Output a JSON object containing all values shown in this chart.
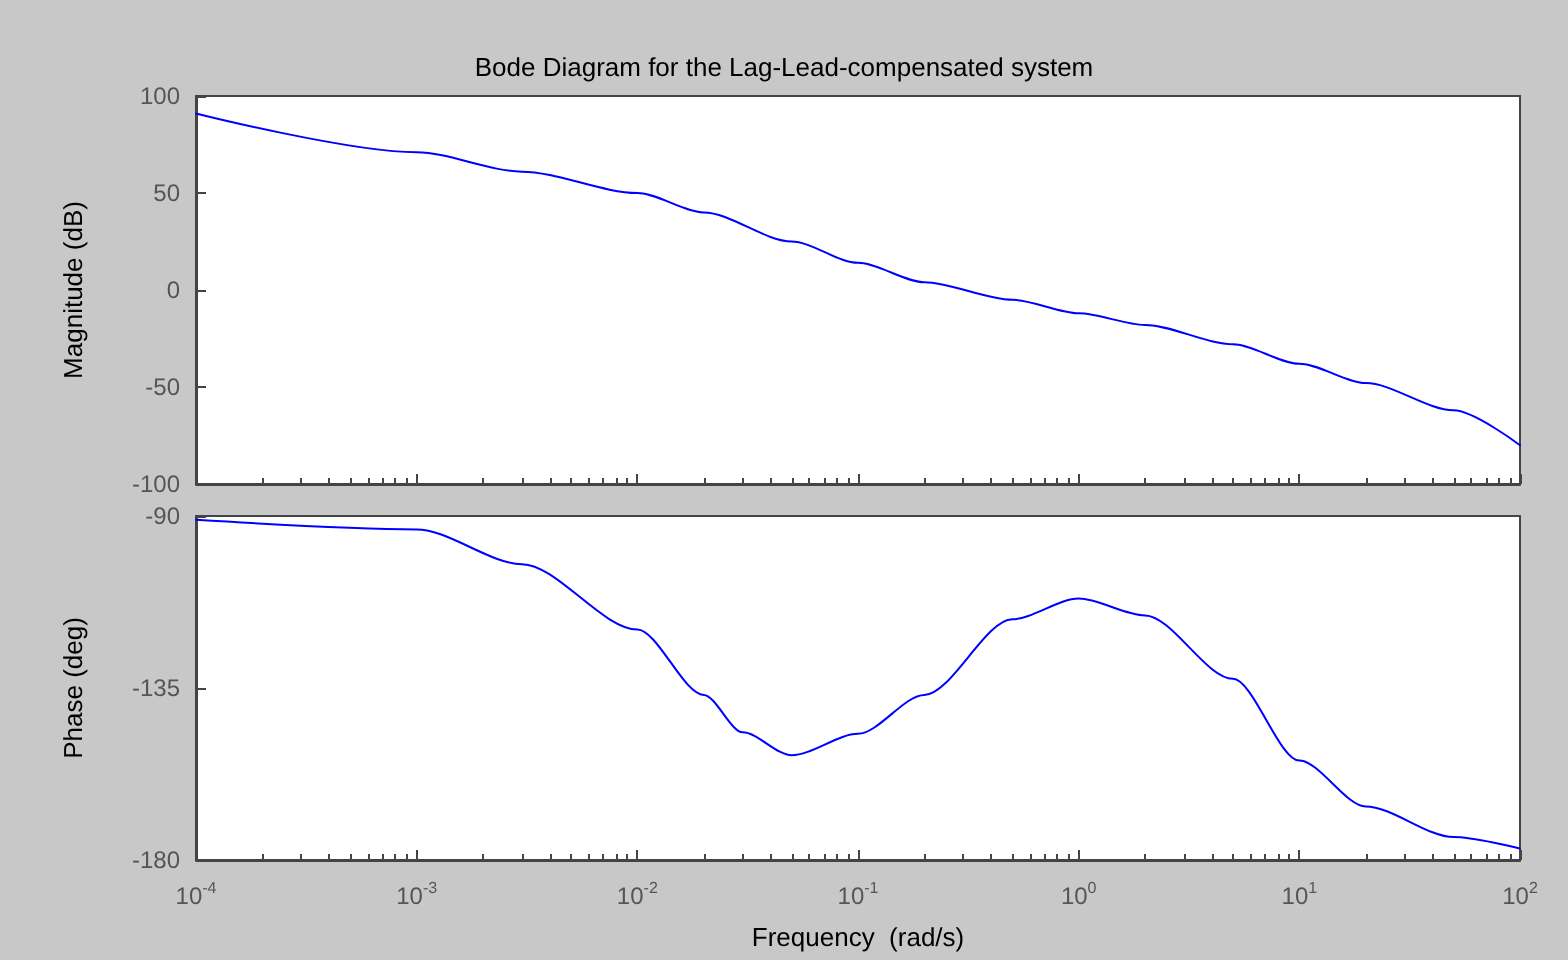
{
  "chart_data": [
    {
      "type": "line",
      "title": "Bode Diagram for the Lag-Lead-compensated system",
      "ylabel": "Magnitude (dB)",
      "log": "x",
      "grid": false,
      "tick_labels": "y",
      "marker": "none",
      "line_style": "solid",
      "x": [
        0.0001,
        0.001,
        0.003,
        0.01,
        0.02,
        0.05,
        0.1,
        0.2,
        0.5,
        1,
        2,
        5,
        10,
        20,
        50,
        100
      ],
      "series": [
        {
          "color": "#0000ff",
          "values": [
            91,
            71,
            61,
            50,
            40,
            25,
            14,
            4,
            -5,
            -12,
            -18,
            -28,
            -38,
            -48,
            -62,
            -80
          ]
        }
      ],
      "xlim": [
        0.0001,
        100
      ],
      "ylim": [
        -100,
        100
      ],
      "yticks": [
        -100,
        -50,
        0,
        50,
        100
      ]
    },
    {
      "type": "line",
      "xlabel": "Frequency  (rad/s)",
      "ylabel": "Phase (deg)",
      "log": "x",
      "grid": false,
      "marker": "none",
      "line_style": "solid",
      "x": [
        0.0001,
        0.001,
        0.003,
        0.01,
        0.02,
        0.03,
        0.05,
        0.1,
        0.2,
        0.5,
        1,
        2,
        5,
        10,
        20,
        50,
        100
      ],
      "series": [
        {
          "color": "#0000ff",
          "values": [
            -91,
            -93.5,
            -102.6,
            -119.7,
            -136.8,
            -146.6,
            -152.6,
            -147,
            -136.8,
            -117,
            -111.6,
            -116,
            -132.6,
            -154,
            -166,
            -174,
            -177
          ]
        }
      ],
      "xlim": [
        0.0001,
        100
      ],
      "xticks": [
        {
          "value": 0.0001,
          "label": "10$^{-4}$"
        },
        {
          "value": 0.001,
          "label": "10$^{-3}$"
        },
        {
          "value": 0.01,
          "label": "10$^{-2}$"
        },
        {
          "value": 0.1,
          "label": "10$^{-1}$"
        },
        {
          "value": 1,
          "label": "10$^{0}$"
        },
        {
          "value": 10,
          "label": "10$^{1}$"
        },
        {
          "value": 100,
          "label": "10$^{2}$"
        }
      ],
      "ylim": [
        -180,
        -90
      ],
      "yticks": [
        -180,
        -135,
        -90
      ]
    }
  ]
}
